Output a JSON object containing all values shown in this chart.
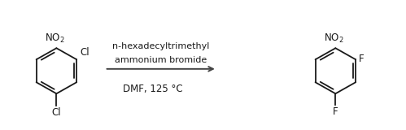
{
  "bg_color": "#ffffff",
  "arrow_color": "#444444",
  "line_color": "#1a1a1a",
  "reagent_line1": "n-hexadecyltrimethyl",
  "reagent_line2": "ammonium bromide",
  "condition": "DMF, 125 °C",
  "font_size_reagent": 8.0,
  "font_size_condition": 8.5,
  "font_size_label": 8.5,
  "fig_width": 4.99,
  "fig_height": 1.6,
  "lw": 1.3
}
